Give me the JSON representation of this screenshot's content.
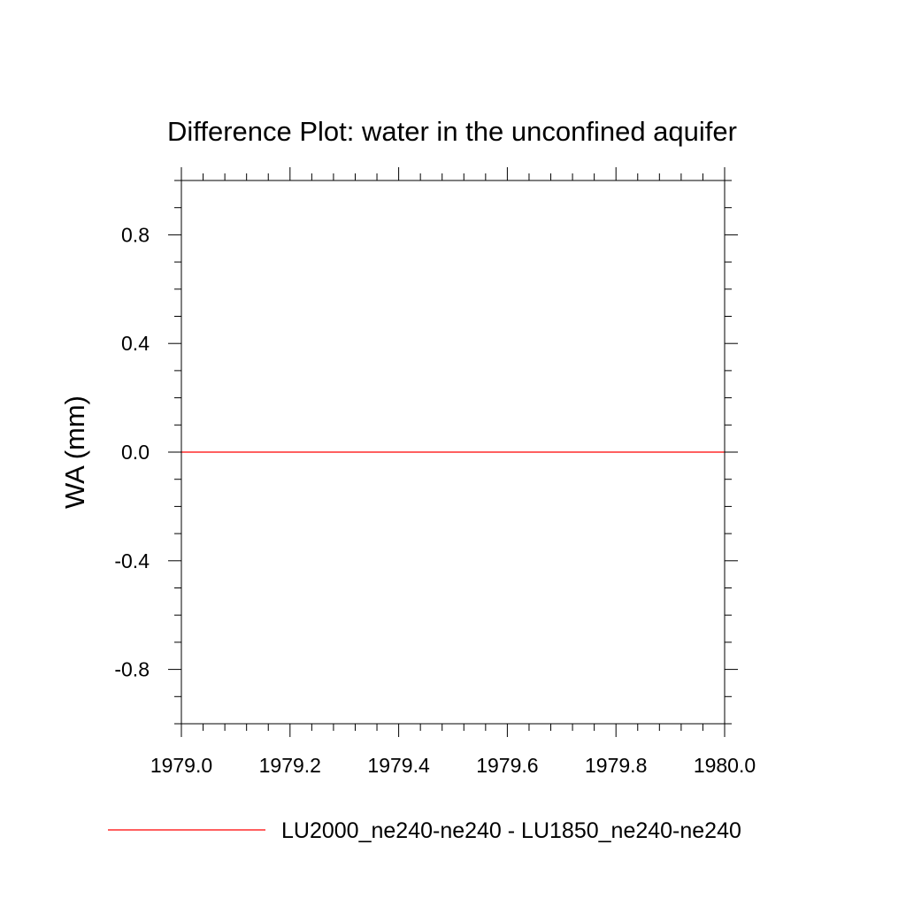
{
  "chart_data": {
    "type": "line",
    "title": "Difference Plot: water in the unconfined aquifer",
    "xlabel": "",
    "ylabel": "WA  (mm)",
    "xlim": [
      1979.0,
      1980.0
    ],
    "ylim": [
      -1.0,
      1.0
    ],
    "x_ticks": [
      1979.0,
      1979.2,
      1979.4,
      1979.6,
      1979.8,
      1980.0
    ],
    "x_tick_labels": [
      "1979.0",
      "1979.2",
      "1979.4",
      "1979.6",
      "1979.8",
      "1980.0"
    ],
    "y_ticks": [
      -0.8,
      -0.4,
      0.0,
      0.4,
      0.8
    ],
    "y_tick_labels": [
      "-0.8",
      "-0.4",
      "0.0",
      "0.4",
      "0.8"
    ],
    "y_minor_step": 0.1,
    "x_minor_step": 0.04,
    "grid": false,
    "legend_position": "bottom",
    "series": [
      {
        "name": "LU2000_ne240-ne240 - LU1850_ne240-ne240",
        "color": "#ff0000",
        "x": [
          1979.0,
          1980.0
        ],
        "y": [
          0.0,
          0.0
        ]
      }
    ]
  }
}
